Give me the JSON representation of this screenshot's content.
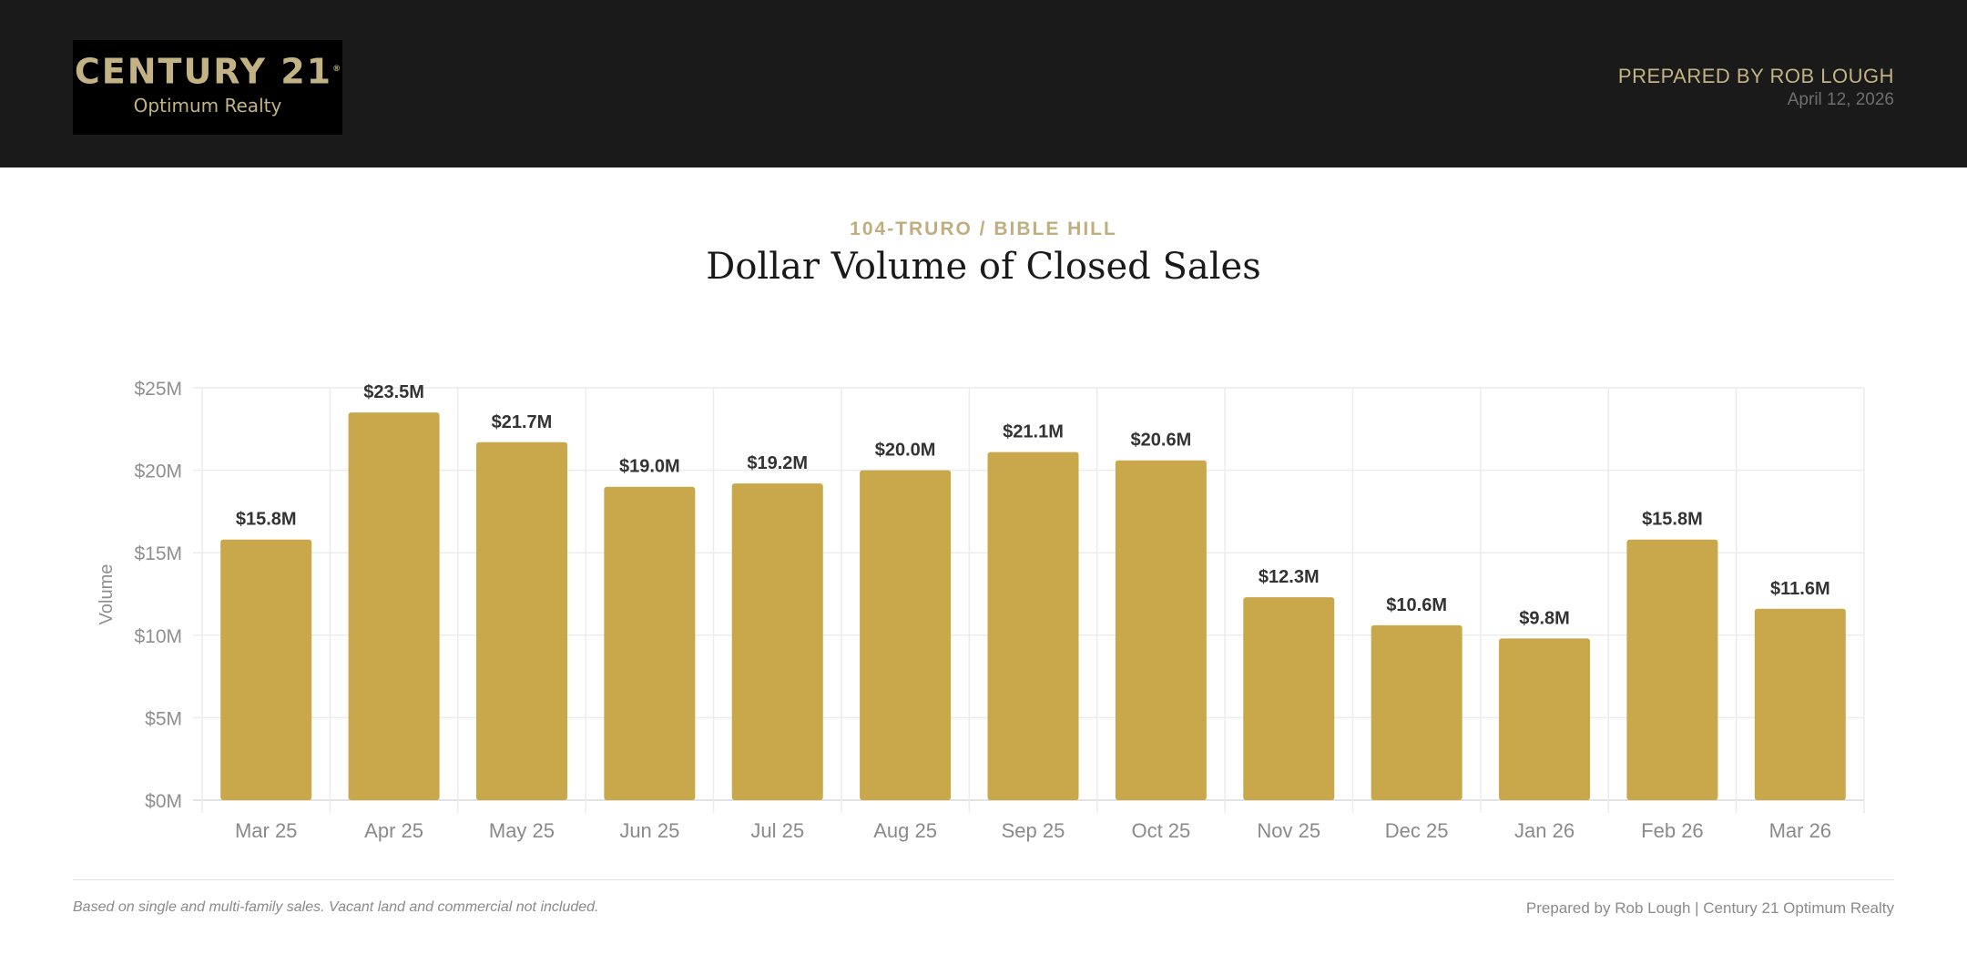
{
  "header": {
    "logo_line1": "CENTURY 21",
    "logo_line2": "Optimum Realty",
    "prepared_by": "PREPARED BY ROB LOUGH",
    "date": "April 12, 2026"
  },
  "report": {
    "subtitle": "104-TRURO / BIBLE HILL",
    "title": "Dollar Volume of Closed Sales"
  },
  "chart_data": {
    "type": "bar",
    "categories": [
      "Mar 25",
      "Apr 25",
      "May 25",
      "Jun 25",
      "Jul 25",
      "Aug 25",
      "Sep 25",
      "Oct 25",
      "Nov 25",
      "Dec 25",
      "Jan 26",
      "Feb 26",
      "Mar 26"
    ],
    "values": [
      15.8,
      23.5,
      21.7,
      19.0,
      19.2,
      20.0,
      21.1,
      20.6,
      12.3,
      10.6,
      9.8,
      15.8,
      11.6
    ],
    "data_labels": [
      "$15.8M",
      "$23.5M",
      "$21.7M",
      "$19.0M",
      "$19.2M",
      "$20.0M",
      "$21.1M",
      "$20.6M",
      "$12.3M",
      "$10.6M",
      "$9.8M",
      "$15.8M",
      "$11.6M"
    ],
    "unit": "$M",
    "ylabel": "Volume",
    "xlabel": "",
    "ylim": [
      0,
      25
    ],
    "yticks": [
      0,
      5,
      10,
      15,
      20,
      25
    ],
    "ytick_labels": [
      "$0M",
      "$5M",
      "$10M",
      "$15M",
      "$20M",
      "$25M"
    ],
    "grid": true,
    "bar_color": "#c9a84c"
  },
  "footer": {
    "note": "Based on single and multi-family sales. Vacant land and commercial not included.",
    "credit": "Prepared by Rob Lough | Century 21 Optimum Realty"
  }
}
